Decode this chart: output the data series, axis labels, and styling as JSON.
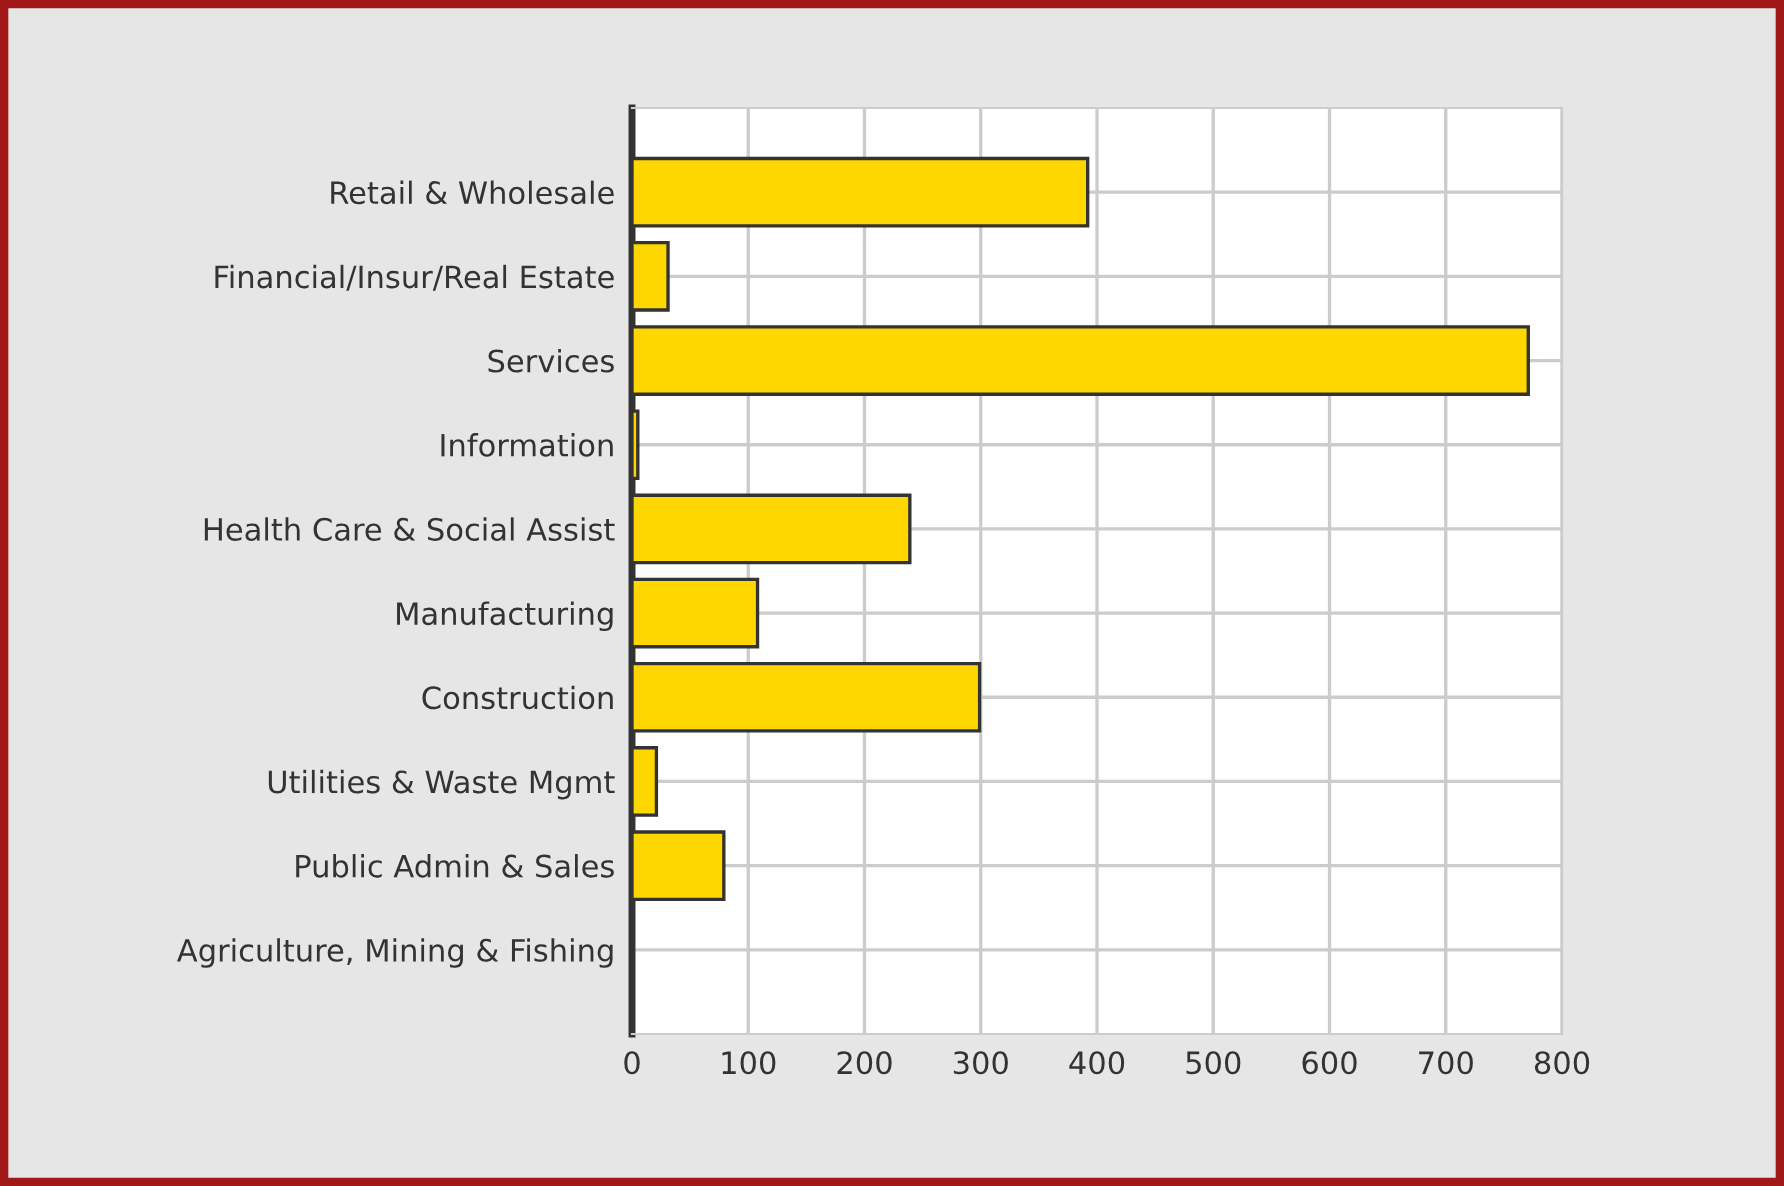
{
  "chart_data": {
    "type": "bar",
    "orientation": "horizontal",
    "categories": [
      "Retail & Wholesale",
      "Financial/Insur/Real Estate",
      "Services",
      "Information",
      "Health Care & Social Assist",
      "Manufacturing",
      "Construction",
      "Utilities & Waste Mgmt",
      "Public Admin & Sales",
      "Agriculture, Mining & Fishing"
    ],
    "values": [
      392,
      31,
      771,
      5,
      239,
      108,
      299,
      21,
      79,
      1
    ],
    "color": "#ffd700",
    "xlim": [
      0,
      800
    ],
    "xticks": [
      0,
      100,
      200,
      300,
      400,
      500,
      600,
      700,
      800
    ],
    "grid": true
  }
}
